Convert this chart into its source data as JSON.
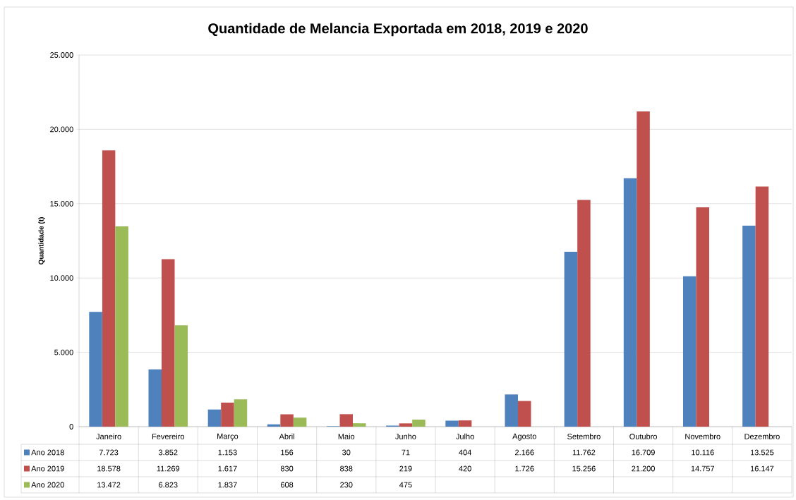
{
  "chart_data": {
    "type": "bar",
    "title": "Quantidade de Melancia Exportada em 2018, 2019 e 2020",
    "ylabel": "Quantidade (t)",
    "categories": [
      "Janeiro",
      "Fevereiro",
      "Março",
      "Abril",
      "Maio",
      "Junho",
      "Julho",
      "Agosto",
      "Setembro",
      "Outubro",
      "Novembro",
      "Dezembro"
    ],
    "series": [
      {
        "name": "Ano 2018",
        "color": "#4f81bd",
        "values": [
          7723,
          3852,
          1153,
          156,
          30,
          71,
          404,
          2166,
          11762,
          16709,
          10116,
          13525
        ],
        "value_labels": [
          "7.723",
          "3.852",
          "1.153",
          "156",
          "30",
          "71",
          "404",
          "2.166",
          "11.762",
          "16.709",
          "10.116",
          "13.525"
        ]
      },
      {
        "name": "Ano 2019",
        "color": "#c0504d",
        "values": [
          18578,
          11269,
          1617,
          830,
          838,
          219,
          420,
          1726,
          15256,
          21200,
          14757,
          16147
        ],
        "value_labels": [
          "18.578",
          "11.269",
          "1.617",
          "830",
          "838",
          "219",
          "420",
          "1.726",
          "15.256",
          "21.200",
          "14.757",
          "16.147"
        ]
      },
      {
        "name": "Ano 2020",
        "color": "#9bbb59",
        "values": [
          13472,
          6823,
          1837,
          608,
          230,
          475,
          null,
          null,
          null,
          null,
          null,
          null
        ],
        "value_labels": [
          "13.472",
          "6.823",
          "1.837",
          "608",
          "230",
          "475",
          null,
          null,
          null,
          null,
          null,
          null
        ]
      }
    ],
    "ylim": [
      0,
      25000
    ],
    "yticks": [
      {
        "value": 0,
        "label": "0"
      },
      {
        "value": 5000,
        "label": "5.000"
      },
      {
        "value": 10000,
        "label": "10.000"
      },
      {
        "value": 15000,
        "label": "15.000"
      },
      {
        "value": 20000,
        "label": "20.000"
      },
      {
        "value": 25000,
        "label": "25.000"
      }
    ],
    "grid": "y",
    "legend": "bottom"
  }
}
